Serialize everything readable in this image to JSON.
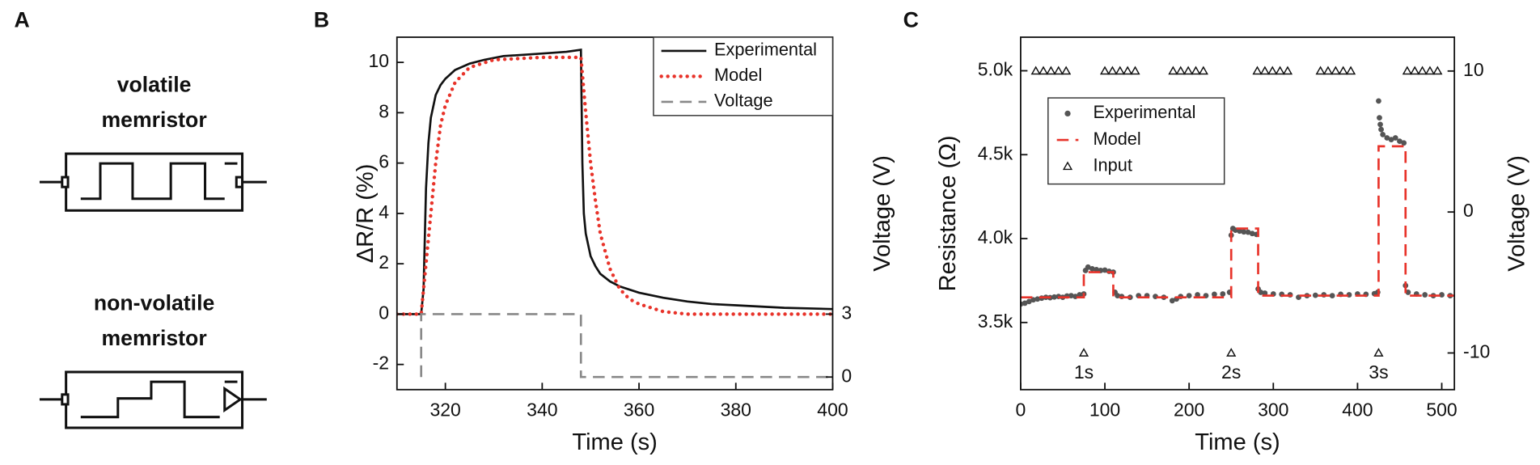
{
  "diagram": {
    "panel_label": "A",
    "labels": [
      [
        "volatile",
        "memristor"
      ],
      [
        "non-volatile",
        "memristor"
      ]
    ]
  },
  "chart_data": [
    {
      "type": "line",
      "panel_label": "B",
      "x_label": "Time (s)",
      "y_label": "ΔR/R (%)",
      "y2_label": "Voltage (V)",
      "xlim": [
        310,
        400
      ],
      "xticks": [
        320,
        340,
        360,
        380,
        400
      ],
      "ylim": [
        -3,
        11
      ],
      "yticks": [
        -2,
        0,
        2,
        4,
        6,
        8,
        10
      ],
      "y2lim": [
        -0.6,
        16.2
      ],
      "y2ticks": [
        0,
        3
      ],
      "legend": "upper right",
      "series": [
        {
          "name": "Experimental",
          "color": "#111111",
          "style": "solid",
          "x": [
            310,
            315,
            315.5,
            316,
            316.5,
            317,
            318,
            319,
            320,
            322,
            325,
            328,
            332,
            336,
            340,
            345,
            348,
            348.3,
            348.6,
            349,
            350,
            351,
            352,
            354,
            356,
            360,
            365,
            370,
            375,
            380,
            390,
            400
          ],
          "values": [
            0,
            0,
            1,
            5,
            6.8,
            7.8,
            8.7,
            9.1,
            9.35,
            9.7,
            9.95,
            10.1,
            10.25,
            10.3,
            10.35,
            10.42,
            10.5,
            6,
            4,
            3.2,
            2.3,
            1.9,
            1.6,
            1.3,
            1.1,
            0.85,
            0.65,
            0.5,
            0.4,
            0.35,
            0.25,
            0.2
          ]
        },
        {
          "name": "Model",
          "color": "#e8332a",
          "style": "dotted",
          "x": [
            310,
            315,
            316,
            317,
            318,
            319,
            320,
            322,
            325,
            330,
            335,
            340,
            348,
            349,
            350,
            351,
            352,
            354,
            356,
            358,
            360,
            365,
            370,
            380,
            400
          ],
          "values": [
            0,
            0,
            2,
            4,
            6,
            7.5,
            8.3,
            9.2,
            9.8,
            10.1,
            10.15,
            10.2,
            10.2,
            8,
            6,
            4.5,
            3.2,
            1.8,
            1,
            0.6,
            0.4,
            0.1,
            0,
            0,
            0
          ]
        },
        {
          "name": "Voltage",
          "color": "#888888",
          "style": "dashed",
          "axis": "y2",
          "x": [
            315,
            315,
            348,
            348,
            400
          ],
          "values": [
            0,
            3,
            3,
            0,
            0
          ]
        }
      ]
    },
    {
      "type": "line",
      "panel_label": "C",
      "x_label": "Time (s)",
      "y_label": "Resistance (Ω)",
      "y2_label": "Voltage (V)",
      "xlim": [
        0,
        515
      ],
      "xticks": [
        0,
        100,
        200,
        300,
        400,
        500
      ],
      "ylim": [
        3100,
        5200
      ],
      "yticks": [
        {
          "value": 3500,
          "label": "3.5k"
        },
        {
          "value": 4000,
          "label": "4.0k"
        },
        {
          "value": 4500,
          "label": "4.5k"
        },
        {
          "value": 5000,
          "label": "5.0k"
        }
      ],
      "y2lim": [
        -12.6,
        12.4
      ],
      "y2ticks": [
        -10,
        0,
        10
      ],
      "legend": "upper left",
      "series": [
        {
          "name": "Experimental",
          "color": "#555555",
          "style": "dots",
          "x": [
            0,
            5,
            10,
            15,
            20,
            25,
            30,
            35,
            40,
            45,
            50,
            55,
            60,
            65,
            70,
            75,
            77,
            80,
            85,
            90,
            95,
            100,
            105,
            110,
            112,
            115,
            120,
            130,
            140,
            150,
            160,
            170,
            180,
            185,
            190,
            200,
            210,
            220,
            230,
            240,
            248,
            250,
            252,
            255,
            260,
            265,
            270,
            275,
            280,
            282,
            285,
            290,
            300,
            310,
            320,
            330,
            340,
            350,
            360,
            370,
            380,
            390,
            400,
            410,
            420,
            424,
            425,
            426,
            427,
            428,
            430,
            435,
            440,
            445,
            450,
            455,
            457,
            460,
            470,
            480,
            490,
            500,
            510
          ],
          "values": [
            3610,
            3615,
            3625,
            3635,
            3640,
            3645,
            3650,
            3648,
            3652,
            3655,
            3650,
            3658,
            3660,
            3655,
            3665,
            3670,
            3810,
            3830,
            3820,
            3815,
            3810,
            3812,
            3805,
            3800,
            3680,
            3660,
            3655,
            3650,
            3660,
            3660,
            3655,
            3650,
            3630,
            3640,
            3655,
            3660,
            3665,
            3660,
            3668,
            3670,
            3680,
            4020,
            4060,
            4050,
            4045,
            4040,
            4038,
            4030,
            4025,
            3700,
            3680,
            3675,
            3670,
            3668,
            3665,
            3650,
            3660,
            3662,
            3665,
            3660,
            3668,
            3665,
            3670,
            3668,
            3672,
            3680,
            4820,
            4720,
            4680,
            4650,
            4620,
            4600,
            4590,
            4600,
            4580,
            4570,
            3720,
            3680,
            3670,
            3665,
            3660,
            3665,
            3660
          ]
        },
        {
          "name": "Model",
          "color": "#e8332a",
          "style": "dashed",
          "x": [
            0,
            75,
            75,
            110,
            110,
            250,
            250,
            282,
            282,
            425,
            425,
            457,
            457,
            515
          ],
          "values": [
            3650,
            3650,
            3800,
            3800,
            3650,
            3650,
            4060,
            4060,
            3660,
            3660,
            4550,
            4550,
            3660,
            3660
          ]
        },
        {
          "name": "Input",
          "color": "#111111",
          "style": "triangles",
          "axis": "y2",
          "x": [
            18,
            27,
            36,
            45,
            54,
            100,
            109,
            118,
            127,
            136,
            181,
            190,
            199,
            208,
            217,
            281,
            290,
            299,
            308,
            317,
            356,
            365,
            374,
            383,
            392,
            459,
            468,
            477,
            486,
            495,
            75,
            250,
            425
          ],
          "values": [
            10,
            10,
            10,
            10,
            10,
            10,
            10,
            10,
            10,
            10,
            10,
            10,
            10,
            10,
            10,
            10,
            10,
            10,
            10,
            10,
            10,
            10,
            10,
            10,
            10,
            10,
            10,
            10,
            10,
            10,
            -10,
            -10,
            -10
          ]
        }
      ],
      "annotations": [
        {
          "text": "1s",
          "x": 75
        },
        {
          "text": "2s",
          "x": 250
        },
        {
          "text": "3s",
          "x": 425
        }
      ]
    }
  ]
}
